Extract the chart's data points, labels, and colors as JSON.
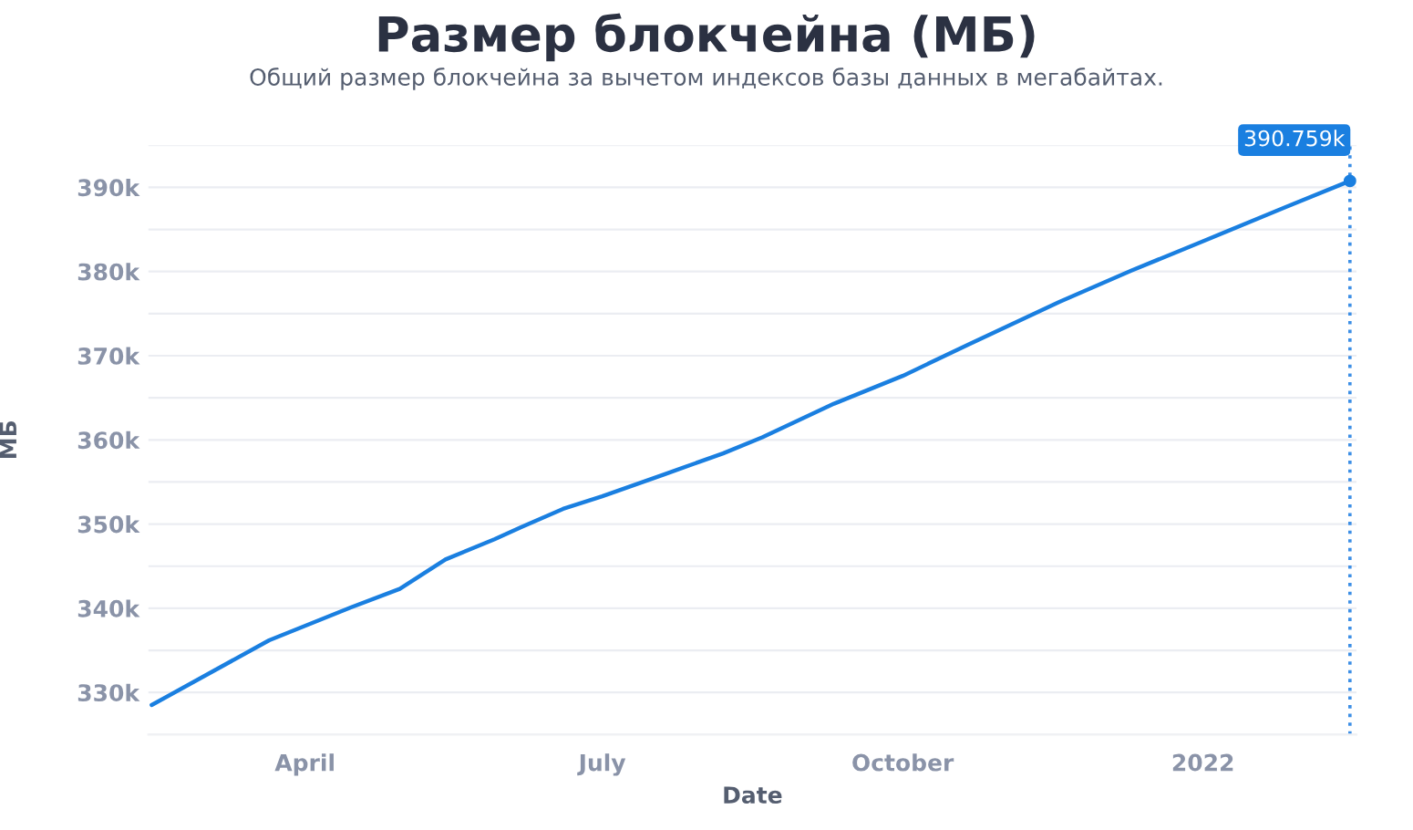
{
  "chart_data": {
    "type": "line",
    "title": "Размер блокчейна (МБ)",
    "subtitle": "Общий размер блокчейна за вычетом индексов базы данных в мегабайтах.",
    "xlabel": "Date",
    "ylabel": "МБ",
    "x": [
      "2021-02-13",
      "2021-03-21",
      "2021-04-15",
      "2021-04-30",
      "2021-05-14",
      "2021-05-29",
      "2021-06-06",
      "2021-06-19",
      "2021-07-01",
      "2021-07-20",
      "2021-08-07",
      "2021-08-19",
      "2021-09-10",
      "2021-10-01",
      "2021-10-21",
      "2021-11-18",
      "2021-12-10",
      "2022-01-01",
      "2022-01-26",
      "2022-02-15"
    ],
    "series": [
      {
        "color": "#1a7fe0",
        "values": [
          328500,
          336200,
          340100,
          342300,
          345800,
          348200,
          349600,
          351800,
          353300,
          355900,
          358400,
          360300,
          364300,
          367600,
          371300,
          376400,
          380100,
          383600,
          387600,
          390759
        ]
      }
    ],
    "xlim": [
      "2021-02-12",
      "2022-02-17"
    ],
    "xticks": [
      {
        "value": "2021-04-01",
        "label": "April"
      },
      {
        "value": "2021-07-01",
        "label": "July"
      },
      {
        "value": "2021-10-01",
        "label": "October"
      },
      {
        "value": "2022-01-01",
        "label": "2022"
      }
    ],
    "ylim": [
      325000,
      395000
    ],
    "yticks": [
      {
        "value": 325000,
        "label": null
      },
      {
        "value": 330000,
        "label": "330k"
      },
      {
        "value": 335000,
        "label": null
      },
      {
        "value": 340000,
        "label": "340k"
      },
      {
        "value": 345000,
        "label": null
      },
      {
        "value": 350000,
        "label": "350k"
      },
      {
        "value": 355000,
        "label": null
      },
      {
        "value": 360000,
        "label": "360k"
      },
      {
        "value": 365000,
        "label": null
      },
      {
        "value": 370000,
        "label": "370k"
      },
      {
        "value": 375000,
        "label": null
      },
      {
        "value": 380000,
        "label": "380k"
      },
      {
        "value": 385000,
        "label": null
      },
      {
        "value": 390000,
        "label": "390k"
      },
      {
        "value": 395000,
        "label": null
      }
    ],
    "grid": "y",
    "legend": false,
    "marker": "none",
    "line_style": "solid",
    "ref_lines": [
      {
        "axis": "x",
        "value": "2022-02-15",
        "label": null,
        "color": "#3d8fe6",
        "line_style": "dotted"
      }
    ],
    "annotations": [
      {
        "text": "390.759k",
        "x": "2022-02-15",
        "y": 390759
      }
    ]
  }
}
